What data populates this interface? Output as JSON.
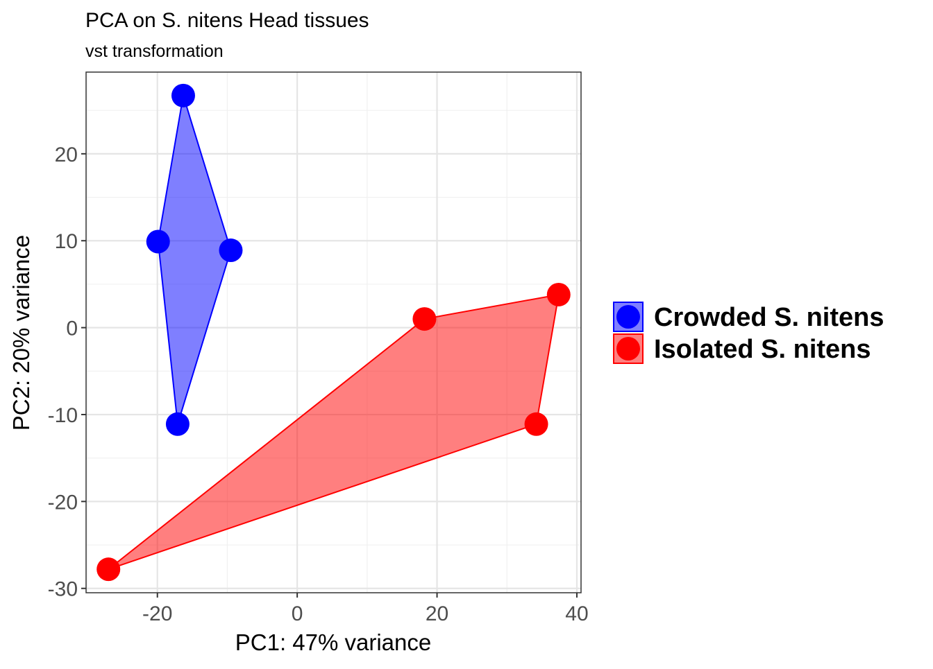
{
  "chart_data": {
    "type": "scatter",
    "title": "PCA on S. nitens Head tissues",
    "subtitle": "vst transformation",
    "xlabel": "PC1: 47% variance",
    "ylabel": "PC2: 20% variance",
    "xlim": [
      -30.2,
      40.6
    ],
    "ylim": [
      -30.5,
      29.4
    ],
    "xticks": [
      -20,
      0,
      20,
      40
    ],
    "yticks": [
      -30,
      -20,
      -10,
      0,
      10,
      20
    ],
    "grid": true,
    "legend_position": "right",
    "series": [
      {
        "name": "Crowded S. nitens",
        "color": "#0000FF",
        "points": [
          [
            -16.3,
            26.7
          ],
          [
            -19.9,
            9.9
          ],
          [
            -9.5,
            8.9
          ],
          [
            -17.1,
            -11.1
          ]
        ],
        "hull": [
          [
            -16.3,
            26.7
          ],
          [
            -9.5,
            8.9
          ],
          [
            -17.1,
            -11.1
          ],
          [
            -19.9,
            9.9
          ]
        ]
      },
      {
        "name": "Isolated S. nitens",
        "color": "#FF0000",
        "points": [
          [
            18.2,
            1.0
          ],
          [
            37.4,
            3.8
          ],
          [
            34.2,
            -11.1
          ],
          [
            -27.0,
            -27.8
          ]
        ],
        "hull": [
          [
            18.2,
            1.0
          ],
          [
            37.4,
            3.8
          ],
          [
            34.2,
            -11.1
          ],
          [
            -27.0,
            -27.8
          ]
        ]
      }
    ]
  }
}
